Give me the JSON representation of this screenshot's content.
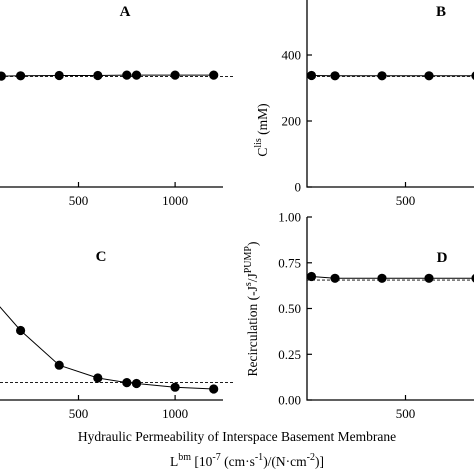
{
  "figure": {
    "x_axis_title": "Hydraulic Permeability of Interspace Basement Membrane",
    "x_unit_symbol": "L",
    "x_unit_sup": "bm",
    "x_unit_rest_1": " [10",
    "x_unit_exp_1": "-7",
    "x_unit_rest_2": " (cm·s",
    "x_unit_exp_2": "-1",
    "x_unit_rest_3": ")/(N·cm",
    "x_unit_exp_3": "-2",
    "x_unit_rest_4": ")]"
  },
  "chart_data": [
    {
      "panel": "A",
      "type": "line",
      "x": [
        100,
        200,
        400,
        600,
        750,
        800,
        1000,
        1200
      ],
      "y": [
        336,
        337,
        338,
        338,
        339,
        339,
        339,
        339
      ],
      "reference_y": 335,
      "xlim": [
        0,
        1300
      ],
      "ylim": [
        0,
        500
      ],
      "xticks": [
        500,
        1000
      ],
      "yticks": [],
      "ylabel": ""
    },
    {
      "panel": "B",
      "type": "line",
      "x": [
        100,
        200,
        400,
        600,
        800
      ],
      "y": [
        338,
        337,
        337,
        337,
        337
      ],
      "reference_y": 335,
      "xlim": [
        0,
        800
      ],
      "ylim": [
        0,
        500
      ],
      "xticks": [
        500
      ],
      "yticks": [
        0,
        200,
        400
      ],
      "ylabel_main": "C",
      "ylabel_sup": "lis",
      "ylabel_unit": " (mM)"
    },
    {
      "panel": "C",
      "type": "line",
      "x": [
        0,
        200,
        400,
        600,
        750,
        800,
        1000,
        1200
      ],
      "y": [
        0.62,
        0.38,
        0.19,
        0.12,
        0.095,
        0.09,
        0.07,
        0.06
      ],
      "reference_y": 0.095,
      "xlim": [
        0,
        1300
      ],
      "ylim": [
        0,
        1.0
      ],
      "xticks": [
        500,
        1000
      ],
      "yticks": [],
      "ylabel": ""
    },
    {
      "panel": "D",
      "type": "line",
      "x": [
        100,
        200,
        400,
        600,
        800
      ],
      "y": [
        0.675,
        0.665,
        0.665,
        0.665,
        0.665
      ],
      "reference_y": 0.655,
      "xlim": [
        0,
        800
      ],
      "ylim": [
        0,
        1.0
      ],
      "xticks": [
        500
      ],
      "yticks": [
        0.0,
        0.25,
        0.5,
        0.75,
        1.0
      ],
      "ylabel_main": "Recirculation (-J",
      "ylabel_sup1": "s",
      "ylabel_mid": "/J",
      "ylabel_sup2": "PUMP",
      "ylabel_end": ")"
    }
  ]
}
